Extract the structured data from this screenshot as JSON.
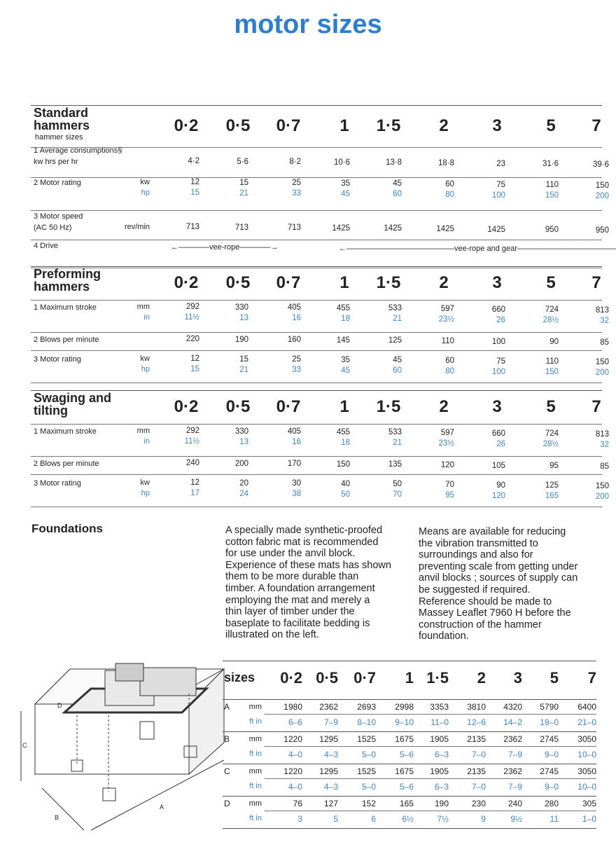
{
  "title": "motor sizes",
  "sizes": [
    "0·2",
    "0·5",
    "0·7",
    "1",
    "1·5",
    "2",
    "3",
    "5",
    "7"
  ],
  "sections": [
    {
      "title": [
        "Standard",
        "hammers"
      ],
      "subtitle": "hammer sizes",
      "rows": [
        {
          "label": [
            "1  Average consumptions§",
            "kw hrs per hr"
          ],
          "lines": [
            {
              "unit": "",
              "values": [
                "4·2",
                "5·6",
                "8·2",
                "10·6",
                "13·8",
                "18·8",
                "23",
                "31·6",
                "39·6"
              ]
            }
          ]
        },
        {
          "label": [
            "2  Motor rating"
          ],
          "lines": [
            {
              "unit": "kw",
              "values": [
                "12",
                "15",
                "25",
                "35",
                "45",
                "60",
                "75",
                "110",
                "150"
              ]
            },
            {
              "unit": "hp",
              "blue": true,
              "values": [
                "15",
                "21",
                "33",
                "45",
                "60",
                "80",
                "100",
                "150",
                "200"
              ]
            }
          ]
        },
        {
          "label": [
            "3  Motor speed",
            "(AC 50 Hz)"
          ],
          "lines": [
            {
              "unit": "rev/min",
              "values": [
                "713",
                "713",
                "713",
                "1425",
                "1425",
                "1425",
                "1425",
                "950",
                "950"
              ]
            }
          ]
        },
        {
          "label": [
            "4  Drive"
          ],
          "drive": [
            "←————vee-rope————→",
            "←——————————————vee-rope and gear——————————————→"
          ]
        }
      ]
    },
    {
      "title": [
        "Preforming",
        "hammers"
      ],
      "rows": [
        {
          "label": [
            "1  Maximum stroke"
          ],
          "lines": [
            {
              "unit": "mm",
              "values": [
                "292",
                "330",
                "405",
                "455",
                "533",
                "597",
                "660",
                "724",
                "813"
              ]
            },
            {
              "unit": "in",
              "blue": true,
              "values": [
                "11½",
                "13",
                "16",
                "18",
                "21",
                "23½",
                "26",
                "28½",
                "32"
              ]
            }
          ]
        },
        {
          "label": [
            "2  Blows per minute"
          ],
          "lines": [
            {
              "unit": "",
              "values": [
                "220",
                "190",
                "160",
                "145",
                "125",
                "110",
                "100",
                "90",
                "85"
              ]
            }
          ]
        },
        {
          "label": [
            "3  Motor rating"
          ],
          "lines": [
            {
              "unit": "kw",
              "values": [
                "12",
                "15",
                "25",
                "35",
                "45",
                "60",
                "75",
                "110",
                "150"
              ]
            },
            {
              "unit": "hp",
              "blue": true,
              "values": [
                "15",
                "21",
                "33",
                "45",
                "60",
                "80",
                "100",
                "150",
                "200"
              ]
            }
          ]
        }
      ]
    },
    {
      "title": [
        "Swaging and",
        "tilting"
      ],
      "rows": [
        {
          "label": [
            "1  Maximum stroke"
          ],
          "lines": [
            {
              "unit": "mm",
              "values": [
                "292",
                "330",
                "405",
                "455",
                "533",
                "597",
                "660",
                "724",
                "813"
              ]
            },
            {
              "unit": "in",
              "blue": true,
              "values": [
                "11½",
                "13",
                "16",
                "18",
                "21",
                "23½",
                "26",
                "28½",
                "32"
              ]
            }
          ]
        },
        {
          "label": [
            "2  Blows per minute"
          ],
          "lines": [
            {
              "unit": "",
              "values": [
                "240",
                "200",
                "170",
                "150",
                "135",
                "120",
                "105",
                "95",
                "85"
              ]
            }
          ]
        },
        {
          "label": [
            "3  Motor rating"
          ],
          "lines": [
            {
              "unit": "kw",
              "values": [
                "12",
                "20",
                "30",
                "40",
                "50",
                "70",
                "90",
                "125",
                "150"
              ]
            },
            {
              "unit": "hp",
              "blue": true,
              "values": [
                "17",
                "24",
                "38",
                "50",
                "70",
                "95",
                "120",
                "165",
                "200"
              ]
            }
          ]
        }
      ]
    }
  ],
  "foundations": {
    "title": "Foundations",
    "para1": [
      "A specially made synthetic-proofed",
      "cotton fabric mat is recommended",
      "for use under the anvil block.",
      "Experience of these mats has shown",
      "them to be more durable than",
      "timber. A foundation arrangement",
      "employing the mat and merely a",
      "thin layer of timber under the",
      "baseplate to facilitate bedding is",
      "illustrated on the left."
    ],
    "para2": [
      "Means are available for reducing",
      "the vibration transmitted to",
      "surroundings and also for",
      "preventing scale from getting under",
      "anvil blocks ; sources of supply can",
      "be suggested if required.",
      "Reference should be made to",
      "Massey Leaflet 7960 H before the",
      "construction of the hammer",
      "foundation."
    ],
    "diagram_labels": [
      "A",
      "B",
      "C",
      "D"
    ],
    "table": {
      "header": "sizes",
      "rows": [
        {
          "dim": "A",
          "mm": [
            "1980",
            "2362",
            "2693",
            "2998",
            "3353",
            "3810",
            "4320",
            "5790",
            "6400"
          ],
          "ftin": [
            "6–6",
            "7–9",
            "8–10",
            "9–10",
            "11–0",
            "12–6",
            "14–2",
            "19–0",
            "21–0"
          ]
        },
        {
          "dim": "B",
          "mm": [
            "1220",
            "1295",
            "1525",
            "1675",
            "1905",
            "2135",
            "2362",
            "2745",
            "3050"
          ],
          "ftin": [
            "4–0",
            "4–3",
            "5–0",
            "5–6",
            "6–3",
            "7–0",
            "7–9",
            "9–0",
            "10–0"
          ]
        },
        {
          "dim": "C",
          "mm": [
            "1220",
            "1295",
            "1525",
            "1675",
            "1905",
            "2135",
            "2362",
            "2745",
            "3050"
          ],
          "ftin": [
            "4–0",
            "4–3",
            "5–0",
            "5–6",
            "6–3",
            "7–0",
            "7–9",
            "9–0",
            "10–0"
          ]
        },
        {
          "dim": "D",
          "mm": [
            "76",
            "127",
            "152",
            "165",
            "190",
            "230",
            "240",
            "280",
            "305"
          ],
          "ftin": [
            "3",
            "5",
            "6",
            "6½",
            "7½",
            "9",
            "9½",
            "11",
            "1–0"
          ]
        }
      ],
      "unit_mm": "mm",
      "unit_ftin": "ft in"
    }
  },
  "colors": {
    "accent": "#2a7fd4",
    "imperial": "#3f86c6"
  }
}
